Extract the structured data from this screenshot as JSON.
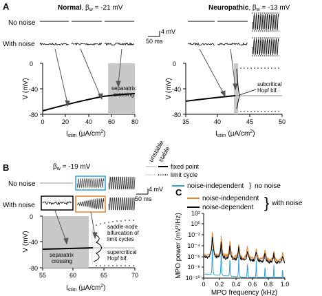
{
  "panels": {
    "A": "A",
    "B": "B",
    "C": "C"
  },
  "panelA": {
    "left_title": "Normal",
    "left_beta": ", β",
    "beta_sub": "w",
    "left_beta_value": " = -21 mV",
    "right_title": "Neuropathic",
    "right_beta_value": " = -13 mV",
    "trace_no_noise": "No noise",
    "trace_with_noise": "With noise",
    "scale_mv": "4 mV",
    "scale_ms": "50 ms",
    "ylabel": "V (mV)",
    "left_xlabel_main": "I",
    "xlabel_sub": "stim",
    "xlabel_unit": " (μA/cm",
    "xlabel_exp": "2",
    "xlabel_close": ")",
    "separatrix": [
      "separatrix",
      "crossing"
    ],
    "subcritical": [
      "subcritical",
      "Hopf bif."
    ],
    "left_xticks": [
      "0",
      "20",
      "40",
      "60",
      "80"
    ],
    "right_xticks": [
      "35",
      "40",
      "45",
      "50"
    ],
    "yticks": [
      "0",
      "-40",
      "-80"
    ],
    "right_yticks": [
      "0",
      "-40",
      "-80"
    ]
  },
  "legend": {
    "unstable": "unstable",
    "stable": "stable",
    "fixed_point": "fixed point",
    "limit_cycle": "limit cycle"
  },
  "panelB": {
    "beta": "β",
    "beta_sub": "w",
    "beta_value": " = -19 mV",
    "trace_no_noise": "No noise",
    "trace_with_noise": "With noise",
    "scale_mv": "4 mV",
    "scale_ms": "50 ms",
    "ylabel": "V (mV)",
    "xticks": [
      "55",
      "60",
      "65",
      "70"
    ],
    "yticks": [
      "0",
      "-40",
      "-80"
    ],
    "separatrix": [
      "separatrix",
      "crossing"
    ],
    "saddle_node": [
      "saddle-node",
      "bifurcation of",
      "limit cycles"
    ],
    "supercritical": [
      "supercritical",
      "Hopf bif."
    ],
    "colors": {
      "blue_box": "#2e9fd8",
      "orange_box": "#e8822a"
    }
  },
  "panelC": {
    "ylabel": "MPO power (mV²/Hz)",
    "xlabel": "MPO frequency (kHz)",
    "xticks": [
      "0",
      "0.2",
      "0.4",
      "0.6",
      "0.8",
      "1.0"
    ],
    "yticks": [
      "10²",
      "10⁰",
      "10⁻²",
      "10⁻⁴",
      "10⁻⁶",
      "10⁻⁸",
      "10⁻¹⁰"
    ],
    "legend": [
      {
        "label": "noise-independent",
        "color": "#2e9fd8",
        "group": "no noise"
      },
      {
        "label": "noise-independent",
        "color": "#e8822a",
        "group": "with noise"
      },
      {
        "label": "noise-dependent",
        "color": "#000000",
        "group": "with noise"
      }
    ]
  }
}
